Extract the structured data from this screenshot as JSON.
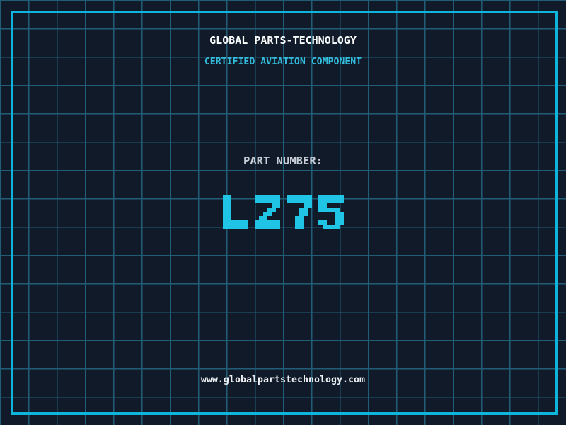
{
  "header": {
    "title": "GLOBAL PARTS-TECHNOLOGY",
    "subtitle": "CERTIFIED AVIATION COMPONENT"
  },
  "part": {
    "label": "PART NUMBER:",
    "value": "LZ75"
  },
  "footer": {
    "url": "www.globalpartstechnology.com"
  },
  "colors": {
    "background": "#101a29",
    "grid_line": "#225d77",
    "frame_border": "#0db5dc",
    "title_text": "#fafcfc",
    "subtitle_text": "#33bcdc",
    "part_label_text": "#c8ced8",
    "part_value_text": "#20c4e4",
    "url_text": "#eceff1"
  }
}
